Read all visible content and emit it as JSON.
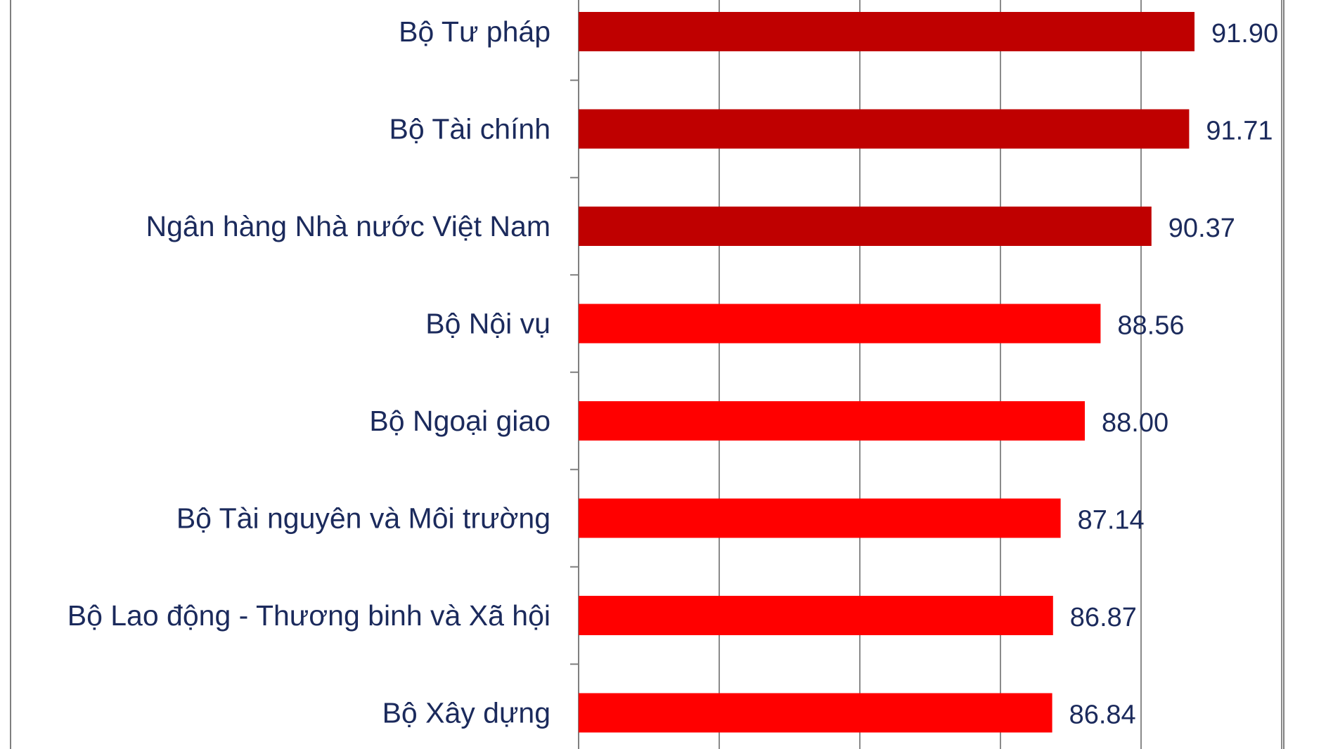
{
  "chart_data": {
    "type": "bar",
    "orientation": "horizontal",
    "categories": [
      "Bộ Tư pháp",
      "Bộ Tài chính",
      "Ngân hàng Nhà nước Việt Nam",
      "Bộ Nội vụ",
      "Bộ Ngoại giao",
      "Bộ Tài nguyên và Môi trường",
      "Bộ Lao động - Thương binh và Xã hội",
      "Bộ Xây dựng"
    ],
    "values": [
      91.9,
      91.71,
      90.37,
      88.56,
      88.0,
      87.14,
      86.87,
      86.84
    ],
    "value_labels": [
      "91.90",
      "91.71",
      "90.37",
      "88.56",
      "88.00",
      "87.14",
      "86.87",
      "86.84"
    ],
    "bar_colors": [
      "#bf0000",
      "#bf0000",
      "#bf0000",
      "#ff0000",
      "#ff0000",
      "#ff0000",
      "#ff0000",
      "#ff0000"
    ],
    "xlim": [
      70,
      95
    ],
    "grid": true,
    "legend": "none",
    "title": "",
    "xlabel": "",
    "ylabel": ""
  }
}
